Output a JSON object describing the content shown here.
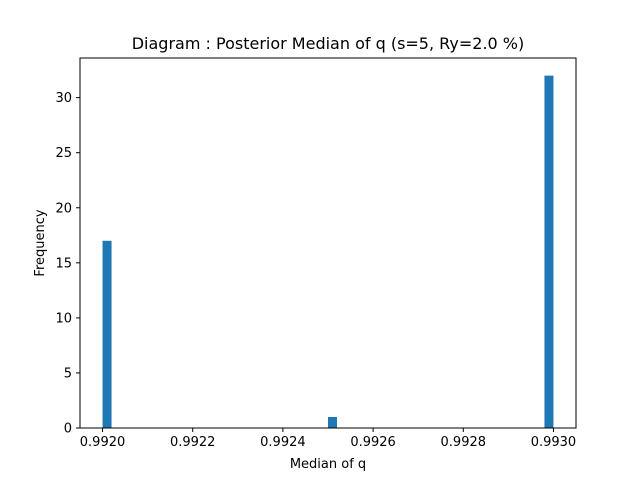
{
  "chart_data": {
    "type": "bar",
    "title": "Diagram : Posterior Median of q (s=5, Ry=2.0 %)",
    "xlabel": "Median of q",
    "ylabel": "Frequency",
    "xlim": [
      0.99195,
      0.99305
    ],
    "ylim": [
      0,
      33.6
    ],
    "x_ticks": [
      "0.9920",
      "0.9922",
      "0.9924",
      "0.9926",
      "0.9928",
      "0.9930"
    ],
    "x_tick_values": [
      0.992,
      0.9922,
      0.9924,
      0.9926,
      0.9928,
      0.993
    ],
    "y_ticks": [
      "0",
      "5",
      "10",
      "15",
      "20",
      "25",
      "30"
    ],
    "y_tick_values": [
      0,
      5,
      10,
      15,
      20,
      25,
      30
    ],
    "bin_width": 2e-05,
    "bars": [
      {
        "x": 0.99201,
        "value": 17
      },
      {
        "x": 0.99251,
        "value": 1
      },
      {
        "x": 0.99299,
        "value": 32
      }
    ],
    "bar_color": "#1f77b4",
    "grid": false,
    "legend": "none"
  }
}
